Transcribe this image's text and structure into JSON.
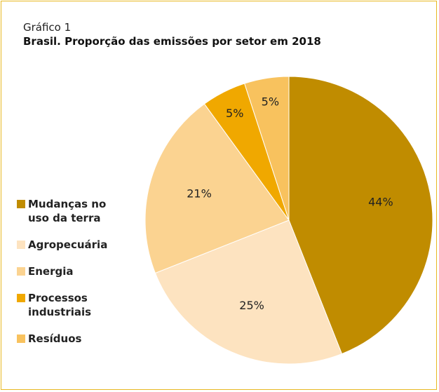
{
  "chart_data": {
    "type": "pie",
    "title": "Gráfico 1",
    "subtitle": "Brasil. Proporção das emissões por setor em 2018",
    "categories": [
      "Mudanças no uso da terra",
      "Agropecuária",
      "Energia",
      "Processos industriais",
      "Resíduos"
    ],
    "values": [
      44,
      25,
      21,
      5,
      5
    ],
    "value_labels": [
      "44%",
      "25%",
      "21%",
      "5%",
      "5%"
    ],
    "colors": [
      "#c08c00",
      "#fde3c0",
      "#fbd391",
      "#f0a800",
      "#f8c25e"
    ],
    "legend": "left"
  }
}
